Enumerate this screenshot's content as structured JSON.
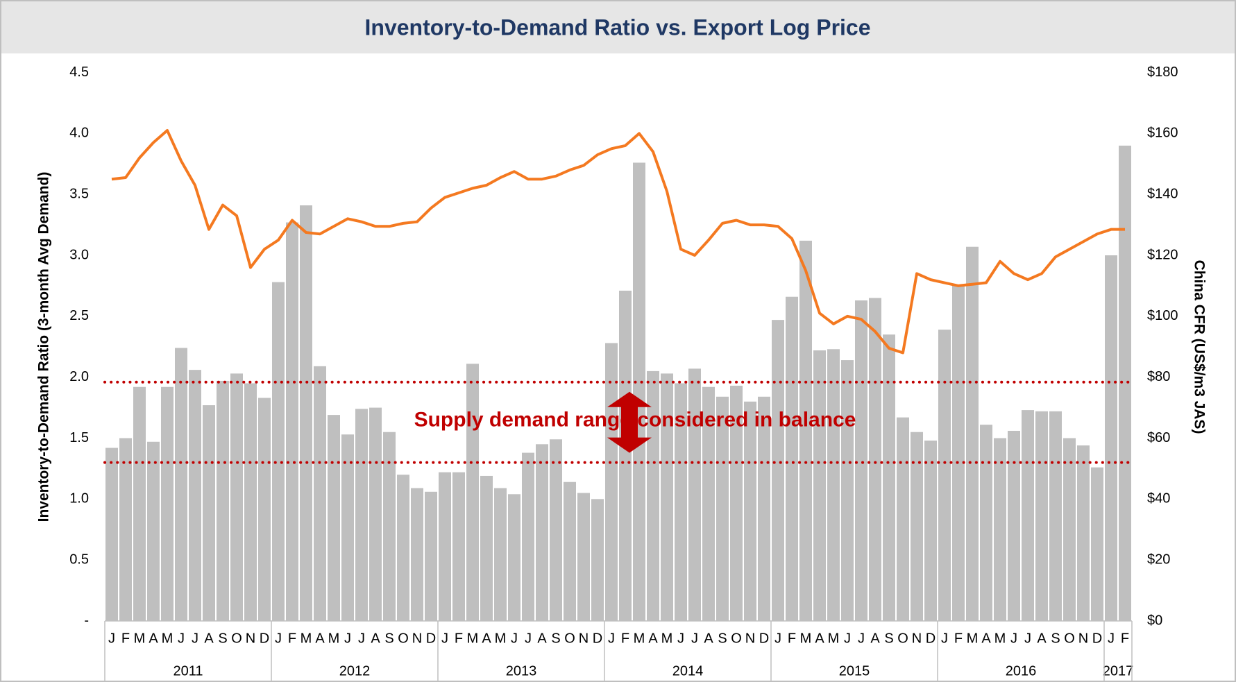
{
  "chart_data": {
    "type": "bar_line",
    "title": "Inventory-to-Demand Ratio vs. Export Log Price",
    "y_label": "Inventory-to-Demand Ratio (3-month Avg Demand)",
    "y2_label": "China CFR (US$/m3 JAS)",
    "annotation": "Supply demand range considered in balance",
    "annotation_color": "#c00000",
    "reference_lines": [
      1.96,
      1.3
    ],
    "categories": [
      "J",
      "F",
      "M",
      "A",
      "M",
      "J",
      "J",
      "A",
      "S",
      "O",
      "N",
      "D",
      "J",
      "F",
      "M",
      "A",
      "M",
      "J",
      "J",
      "A",
      "S",
      "O",
      "N",
      "D",
      "J",
      "F",
      "M",
      "A",
      "M",
      "J",
      "J",
      "A",
      "S",
      "O",
      "N",
      "D",
      "J",
      "F",
      "M",
      "A",
      "M",
      "J",
      "J",
      "A",
      "S",
      "O",
      "N",
      "D",
      "J",
      "F",
      "M",
      "A",
      "M",
      "J",
      "J",
      "A",
      "S",
      "O",
      "N",
      "D",
      "J",
      "F",
      "M",
      "A",
      "M",
      "J",
      "J",
      "A",
      "S",
      "O",
      "N",
      "D",
      "J",
      "F"
    ],
    "year_groups": [
      "2011",
      "2012",
      "2013",
      "2014",
      "2015",
      "2016",
      "2017"
    ],
    "series": [
      {
        "type": "bar",
        "color": "#bfbfbf",
        "axis": "y",
        "values": [
          1.42,
          1.5,
          1.92,
          1.47,
          1.92,
          2.24,
          2.06,
          1.77,
          1.97,
          2.03,
          1.95,
          1.83,
          2.78,
          3.27,
          3.41,
          2.09,
          1.69,
          1.53,
          1.74,
          1.75,
          1.55,
          1.2,
          1.09,
          1.06,
          1.22,
          1.22,
          2.11,
          1.19,
          1.09,
          1.04,
          1.38,
          1.45,
          1.49,
          1.14,
          1.05,
          1.0,
          2.28,
          2.71,
          3.76,
          2.05,
          2.03,
          1.95,
          2.07,
          1.92,
          1.84,
          1.93,
          1.8,
          1.84,
          2.47,
          2.66,
          3.12,
          2.22,
          2.23,
          2.14,
          2.63,
          2.65,
          2.35,
          1.67,
          1.55,
          1.48,
          2.39,
          2.75,
          3.07,
          1.61,
          1.5,
          1.56,
          1.73,
          1.72,
          1.72,
          1.5,
          1.44,
          1.26,
          3.0,
          3.9
        ]
      },
      {
        "type": "line",
        "color": "#f47920",
        "axis": "y2",
        "values": [
          145,
          145.5,
          152,
          157,
          161,
          151,
          143,
          128.5,
          136.5,
          133,
          116,
          122,
          125,
          131.5,
          127.5,
          127,
          129.5,
          132,
          131,
          129.5,
          129.5,
          130.5,
          131,
          135.5,
          139,
          140.5,
          142,
          143,
          145.5,
          147.5,
          145,
          145,
          146,
          148,
          149.5,
          153,
          155,
          156,
          160,
          154,
          141,
          122,
          120,
          125,
          130.5,
          131.5,
          130,
          130,
          129.5,
          125.5,
          115,
          101,
          97.5,
          100,
          99,
          95,
          89.5,
          88,
          114,
          112,
          111,
          110,
          110.5,
          111,
          118,
          114,
          112,
          114,
          119.5,
          122,
          124.5,
          127,
          128.5,
          128.5
        ]
      }
    ],
    "ylim": [
      0,
      4.5
    ],
    "yticks": [
      {
        "value": 0,
        "label": "-"
      },
      0.5,
      {
        "value": 1,
        "label": "1.0"
      },
      1.5,
      {
        "value": 2,
        "label": "2.0"
      },
      2.5,
      {
        "value": 3,
        "label": "3.0"
      },
      3.5,
      {
        "value": 4,
        "label": "4.0"
      },
      4.5
    ],
    "y2lim": [
      0,
      180
    ],
    "y2ticks": [
      {
        "value": 0,
        "label": "$0"
      },
      {
        "value": 20,
        "label": "$20"
      },
      {
        "value": 40,
        "label": "$40"
      },
      {
        "value": 60,
        "label": "$60"
      },
      {
        "value": 80,
        "label": "$80"
      },
      {
        "value": 100,
        "label": "$100"
      },
      {
        "value": 120,
        "label": "$120"
      },
      {
        "value": 140,
        "label": "$140"
      },
      {
        "value": 160,
        "label": "$160"
      },
      {
        "value": 180,
        "label": "$180"
      }
    ],
    "grid": false
  }
}
